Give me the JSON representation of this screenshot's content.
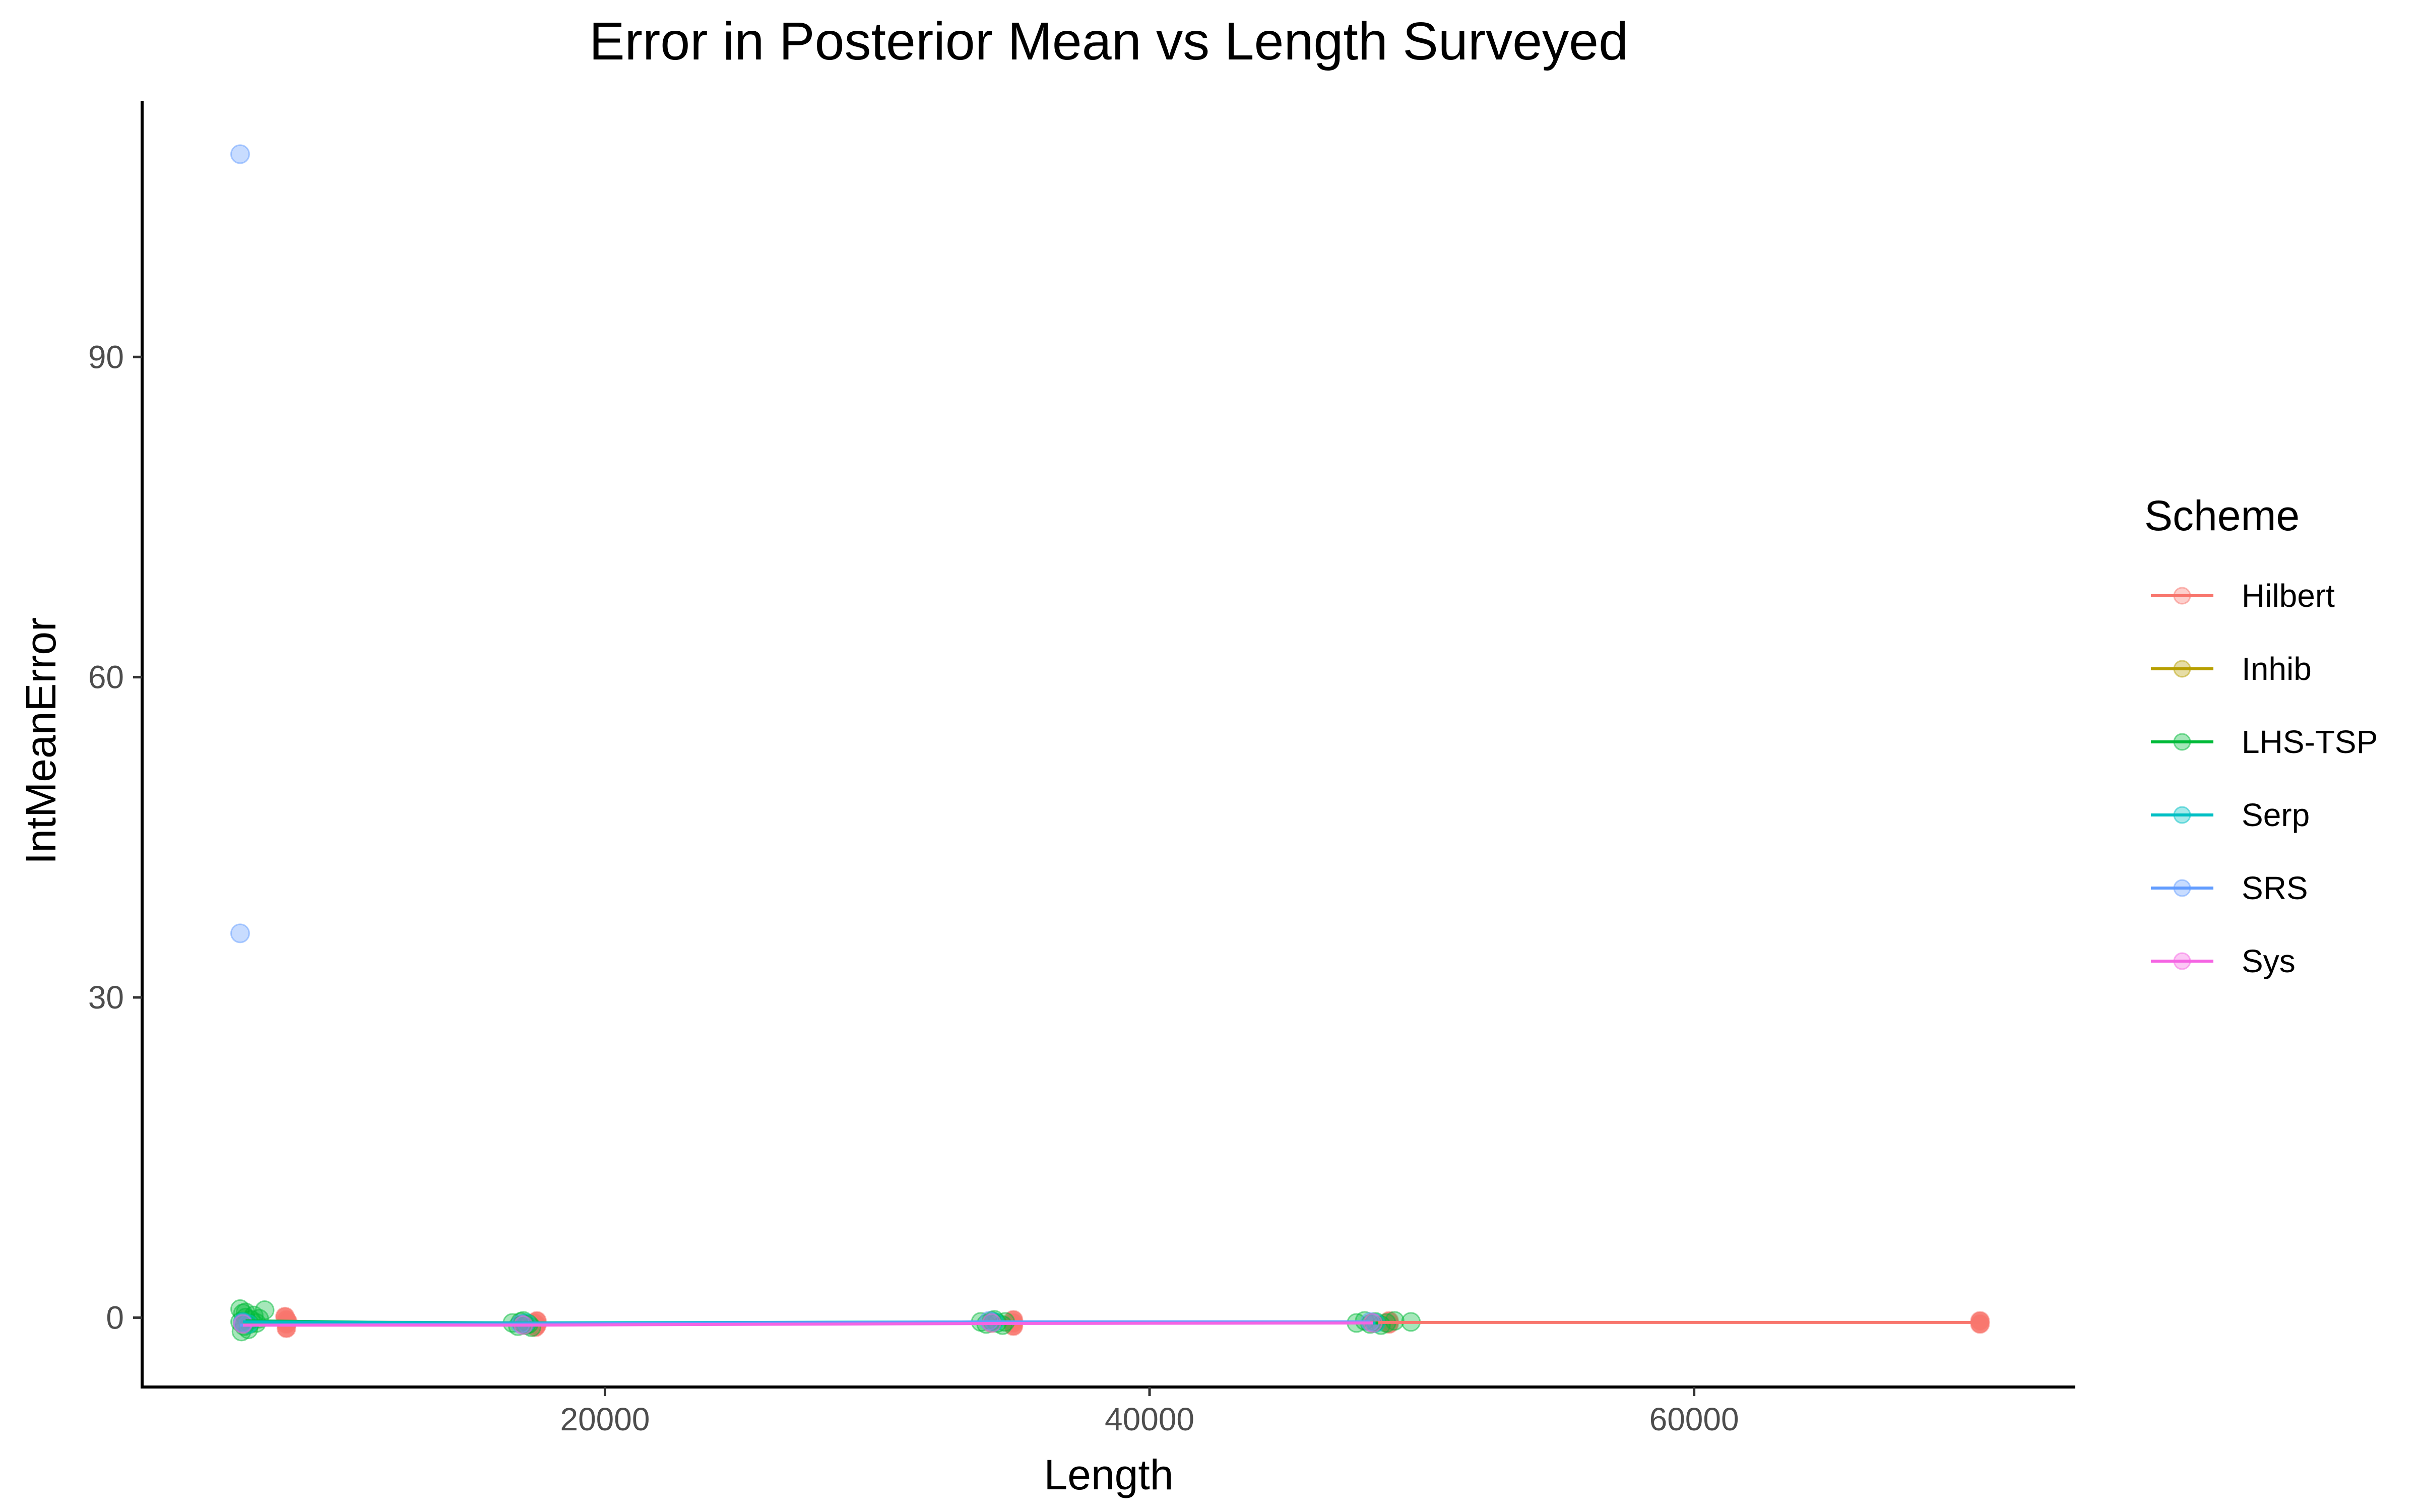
{
  "chart_data": {
    "type": "scatter",
    "title": "Error in Posterior Mean vs Length Surveyed",
    "xlabel": "Length",
    "ylabel": "IntMeanError",
    "xlim": [
      3000,
      74000
    ],
    "ylim": [
      -6.5,
      114
    ],
    "x_ticks": [
      20000,
      40000,
      60000
    ],
    "x_tick_labels": [
      "20000",
      "40000",
      "60000"
    ],
    "y_ticks": [
      0,
      30,
      60,
      90
    ],
    "y_tick_labels": [
      "0",
      "30",
      "60",
      "90"
    ],
    "grid": false,
    "legend": {
      "title": "Scheme",
      "position": "right",
      "entries": [
        "Hilbert",
        "Inhib",
        "LHS-TSP",
        "Serp",
        "SRS",
        "Sys"
      ]
    },
    "series": [
      {
        "name": "Hilbert",
        "color": "#F8766D",
        "points": [
          [
            8300,
            -0.2
          ],
          [
            8300,
            -0.6
          ],
          [
            8300,
            -1.0
          ],
          [
            8250,
            0.1
          ],
          [
            8350,
            -0.4
          ],
          [
            17500,
            -0.3
          ],
          [
            17500,
            -0.7
          ],
          [
            17400,
            -0.5
          ],
          [
            17450,
            -0.9
          ],
          [
            35000,
            -0.2
          ],
          [
            35000,
            -0.5
          ],
          [
            35000,
            -0.8
          ],
          [
            48800,
            -0.3
          ],
          [
            48800,
            -0.6
          ],
          [
            70500,
            -0.3
          ],
          [
            70500,
            -0.6
          ]
        ],
        "line": [
          [
            8300,
            -0.4
          ],
          [
            17500,
            -0.5
          ],
          [
            35000,
            -0.5
          ],
          [
            48800,
            -0.45
          ],
          [
            70500,
            -0.45
          ]
        ]
      },
      {
        "name": "Inhib",
        "color": "#B79F00",
        "points": [
          [
            6700,
            -0.5
          ],
          [
            17000,
            -0.6
          ],
          [
            34200,
            -0.5
          ],
          [
            48200,
            -0.5
          ]
        ],
        "line": [
          [
            6700,
            -0.5
          ],
          [
            17000,
            -0.6
          ],
          [
            34200,
            -0.5
          ],
          [
            48200,
            -0.5
          ]
        ]
      },
      {
        "name": "LHS-TSP",
        "color": "#00BA38",
        "points": [
          [
            6600,
            0.8
          ],
          [
            6700,
            0.4
          ],
          [
            6800,
            0.0
          ],
          [
            6600,
            -0.4
          ],
          [
            6750,
            -0.8
          ],
          [
            6900,
            -1.1
          ],
          [
            6650,
            -1.3
          ],
          [
            7100,
            0.2
          ],
          [
            7200,
            -0.5
          ],
          [
            7500,
            0.7
          ],
          [
            7000,
            -0.2
          ],
          [
            6800,
            0.5
          ],
          [
            6950,
            -0.6
          ],
          [
            7300,
            -0.1
          ],
          [
            16600,
            -0.5
          ],
          [
            16800,
            -0.8
          ],
          [
            17000,
            -0.3
          ],
          [
            17200,
            -0.6
          ],
          [
            17300,
            -0.9
          ],
          [
            16900,
            -0.4
          ],
          [
            17100,
            -0.7
          ],
          [
            33800,
            -0.4
          ],
          [
            34000,
            -0.6
          ],
          [
            34200,
            -0.3
          ],
          [
            34400,
            -0.5
          ],
          [
            34600,
            -0.7
          ],
          [
            34300,
            -0.2
          ],
          [
            34700,
            -0.4
          ],
          [
            47600,
            -0.5
          ],
          [
            47900,
            -0.3
          ],
          [
            48100,
            -0.6
          ],
          [
            48300,
            -0.4
          ],
          [
            48500,
            -0.7
          ],
          [
            48700,
            -0.5
          ],
          [
            49000,
            -0.3
          ],
          [
            49600,
            -0.4
          ]
        ],
        "line": [
          [
            6800,
            -0.3
          ],
          [
            17000,
            -0.6
          ],
          [
            34300,
            -0.5
          ],
          [
            48400,
            -0.5
          ]
        ]
      },
      {
        "name": "Serp",
        "color": "#00BFC4",
        "points": [
          [
            6700,
            -0.4
          ],
          [
            6900,
            -0.6
          ],
          [
            17100,
            -0.5
          ],
          [
            34300,
            -0.4
          ],
          [
            48300,
            -0.5
          ]
        ],
        "line": [
          [
            6700,
            -0.4
          ],
          [
            17100,
            -0.5
          ],
          [
            34300,
            -0.4
          ],
          [
            48300,
            -0.5
          ]
        ]
      },
      {
        "name": "SRS",
        "color": "#619CFF",
        "points": [
          [
            6600,
            109
          ],
          [
            6600,
            36
          ],
          [
            6700,
            -0.5
          ],
          [
            16900,
            -0.6
          ],
          [
            34100,
            -0.3
          ],
          [
            48100,
            -0.4
          ]
        ],
        "line": [
          [
            6600,
            -0.7
          ],
          [
            16900,
            -0.6
          ],
          [
            34100,
            -0.4
          ],
          [
            48100,
            -0.4
          ]
        ]
      },
      {
        "name": "Sys",
        "color": "#F564E3",
        "points": [
          [
            6700,
            -0.6
          ],
          [
            17000,
            -0.7
          ],
          [
            34200,
            -0.5
          ],
          [
            48200,
            -0.5
          ]
        ],
        "line": [
          [
            6700,
            -0.7
          ],
          [
            17000,
            -0.7
          ],
          [
            34200,
            -0.55
          ],
          [
            48200,
            -0.5
          ]
        ]
      }
    ]
  }
}
